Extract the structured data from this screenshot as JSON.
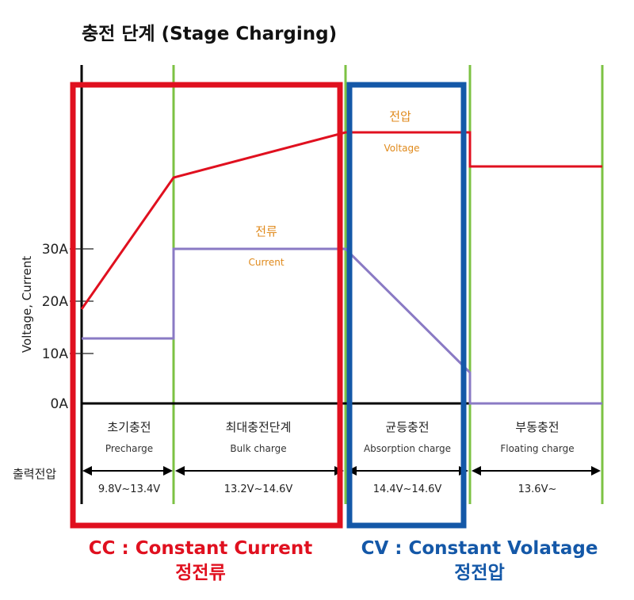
{
  "title": "충전 단계 (Stage Charging)",
  "y_axis_label": "Voltage, Current",
  "y_ticks": [
    "30A",
    "20A",
    "10A",
    "0A"
  ],
  "voltage_label": "전압",
  "voltage_label_en": "Voltage",
  "current_label": "전류",
  "current_label_en": "Current",
  "output_voltage_label": "출력전압",
  "stages": [
    {
      "name": "초기충전",
      "name_en": "Precharge",
      "range": "9.8V~13.4V"
    },
    {
      "name": "최대충전단계",
      "name_en": "Bulk charge",
      "range": "13.2V~14.6V"
    },
    {
      "name": "균등충전",
      "name_en": "Absorption charge",
      "range": "14.4V~14.6V"
    },
    {
      "name": "부동충전",
      "name_en": "Floating charge",
      "range": "13.6V~"
    }
  ],
  "cc": {
    "line1": "CC : Constant Current",
    "line2": "정전류",
    "color": "#e0101f"
  },
  "cv": {
    "line1": "CV : Constant Volatage",
    "line2": "정전압",
    "color": "#1458a8"
  },
  "colors": {
    "voltage": "#e0101f",
    "current": "#8a7ac4",
    "divider": "#7cc243",
    "label": "#e08a1c"
  }
}
